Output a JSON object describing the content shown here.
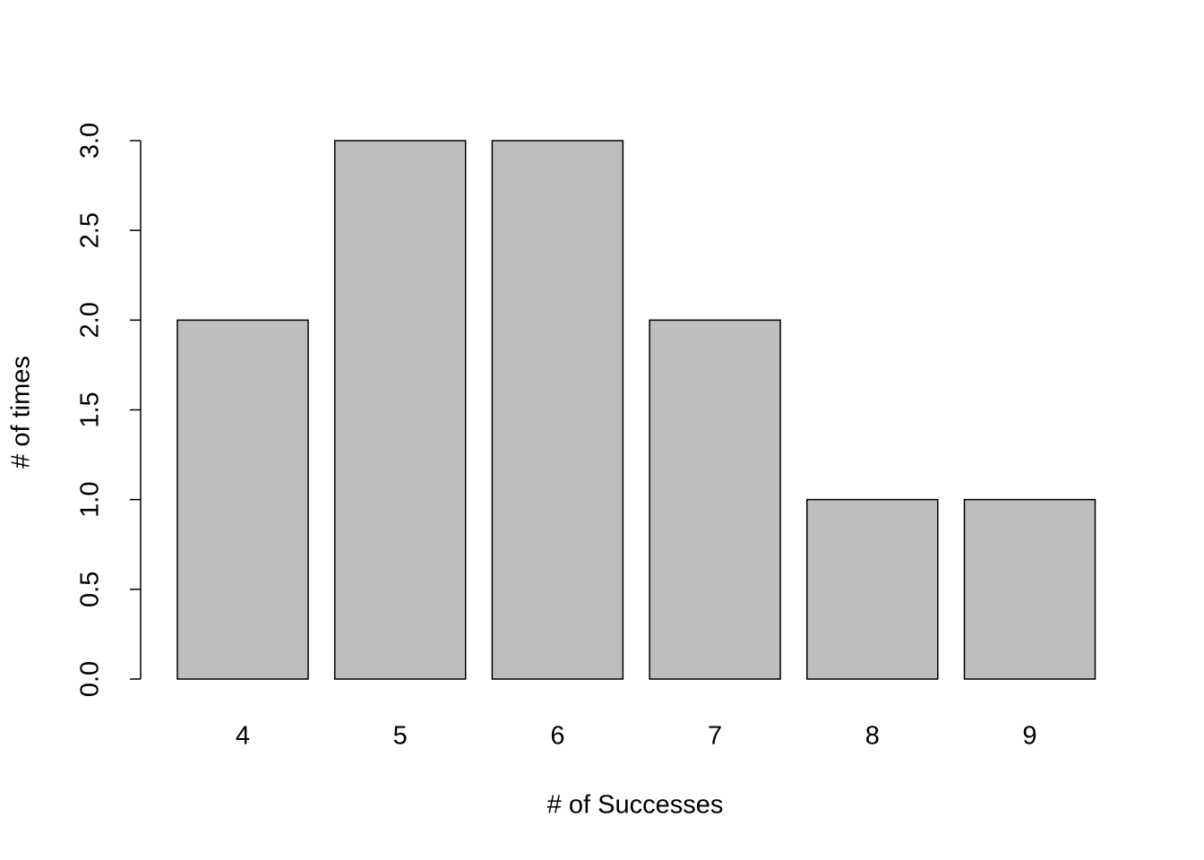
{
  "chart_data": {
    "type": "bar",
    "x_label": "# of Successes",
    "y_label": "# of times",
    "categories": [
      "4",
      "5",
      "6",
      "7",
      "8",
      "9"
    ],
    "values": [
      2,
      3,
      3,
      2,
      1,
      1
    ],
    "color": "#bebebe",
    "ylim": [
      0,
      3
    ],
    "yticks": [
      {
        "value": 0,
        "label": "0.0"
      },
      0.5,
      {
        "value": 1,
        "label": "1.0"
      },
      1.5,
      {
        "value": 2,
        "label": "2.0"
      },
      2.5,
      {
        "value": 3,
        "label": "3.0"
      }
    ],
    "grid": false
  }
}
